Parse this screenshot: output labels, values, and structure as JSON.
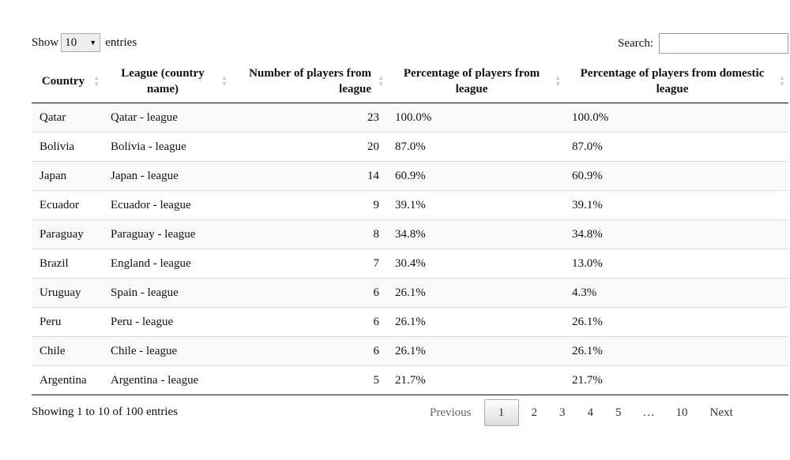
{
  "length_control": {
    "show_label": "Show",
    "selected_value": "10",
    "entries_label": "entries"
  },
  "search": {
    "label": "Search:",
    "value": ""
  },
  "table": {
    "headers": [
      "Country",
      "League (country name)",
      "Number of players from league",
      "Percentage of players from league",
      "Percentage of players from domestic league"
    ],
    "rows": [
      [
        "Qatar",
        "Qatar - league",
        "23",
        "100.0%",
        "100.0%"
      ],
      [
        "Bolivia",
        "Bolivia - league",
        "20",
        "87.0%",
        "87.0%"
      ],
      [
        "Japan",
        "Japan - league",
        "14",
        "60.9%",
        "60.9%"
      ],
      [
        "Ecuador",
        "Ecuador - league",
        "9",
        "39.1%",
        "39.1%"
      ],
      [
        "Paraguay",
        "Paraguay - league",
        "8",
        "34.8%",
        "34.8%"
      ],
      [
        "Brazil",
        "England - league",
        "7",
        "30.4%",
        "13.0%"
      ],
      [
        "Uruguay",
        "Spain - league",
        "6",
        "26.1%",
        "4.3%"
      ],
      [
        "Peru",
        "Peru - league",
        "6",
        "26.1%",
        "26.1%"
      ],
      [
        "Chile",
        "Chile - league",
        "6",
        "26.1%",
        "26.1%"
      ],
      [
        "Argentina",
        "Argentina - league",
        "5",
        "21.7%",
        "21.7%"
      ]
    ]
  },
  "info": "Showing 1 to 10 of 100 entries",
  "pagination": {
    "previous": "Previous",
    "pages": [
      "1",
      "2",
      "3",
      "4",
      "5"
    ],
    "ellipsis": "…",
    "last": "10",
    "next": "Next",
    "current": "1"
  },
  "icons": {
    "sort": "sort-both-icon",
    "dropdown": "chevron-down-icon"
  }
}
